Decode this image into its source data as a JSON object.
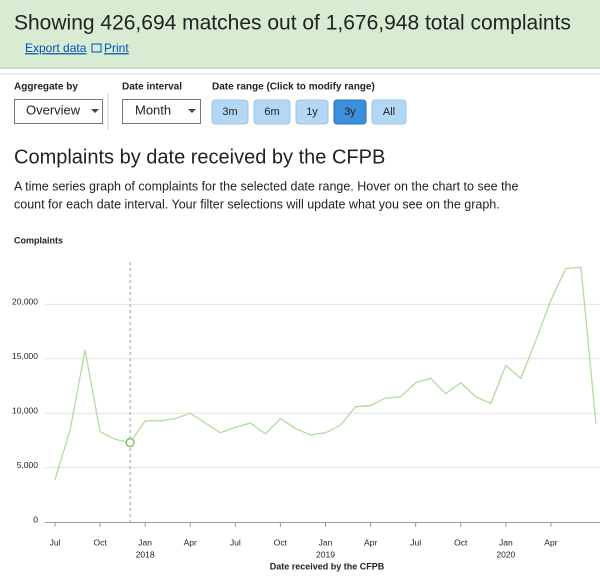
{
  "header": {
    "title": "Showing 426,694 matches out of 1,676,948 total complaints",
    "links": [
      "Export data",
      "Print"
    ]
  },
  "controls": {
    "aggregate": {
      "label": "Aggregate by",
      "value": "Overview"
    },
    "interval": {
      "label": "Date interval",
      "value": "Month"
    },
    "range": {
      "label": "Date range (Click to modify range)",
      "buttons": [
        "3m",
        "6m",
        "1y",
        "3y",
        "All"
      ],
      "active": 3
    }
  },
  "section": {
    "title": "Complaints by date received by the CFPB",
    "description": [
      "A time series graph of complaints for the selected date range. Hover on the chart to see the",
      "count for each date interval. Your filter selections will update what you see on the graph."
    ]
  },
  "chart_data": {
    "type": "line",
    "y_label": "Complaints",
    "x_label": "Date received by the CFPB",
    "color": "#b0dc9c",
    "grid": true,
    "x": [
      0,
      1,
      2,
      3,
      4,
      5,
      6,
      7,
      8,
      9,
      10,
      11,
      12,
      13,
      14,
      15,
      16,
      17,
      18,
      19,
      20,
      21,
      22,
      23,
      24,
      25,
      26,
      27,
      28,
      29,
      30,
      31,
      32,
      33,
      34,
      35,
      36
    ],
    "values": [
      3900,
      8400,
      15800,
      8300,
      7600,
      7300,
      9300,
      9300,
      9500,
      10000,
      9100,
      8200,
      8700,
      9100,
      8100,
      9500,
      8600,
      8000,
      8200,
      8900,
      10600,
      10700,
      11400,
      11500,
      12800,
      13200,
      11800,
      12800,
      11500,
      10900,
      14400,
      13200,
      16700,
      20400,
      23300,
      23400,
      9000
    ],
    "highlight": 5,
    "xlim": [
      0,
      36
    ],
    "ylim": [
      0,
      25000
    ],
    "xticks": [
      {
        "value": 0,
        "label": "Jul"
      },
      {
        "value": 3,
        "label": "Oct"
      },
      {
        "value": 6,
        "label": "Jan"
      },
      {
        "value": 9,
        "label": "Apr"
      },
      {
        "value": 12,
        "label": "Jul"
      },
      {
        "value": 15,
        "label": "Oct"
      },
      {
        "value": 18,
        "label": "Jan"
      },
      {
        "value": 21,
        "label": "Apr"
      },
      {
        "value": 24,
        "label": "Jul"
      },
      {
        "value": 27,
        "label": "Oct"
      },
      {
        "value": 30,
        "label": "Jan"
      },
      {
        "value": 33,
        "label": "Apr"
      }
    ],
    "xyears": [
      {
        "value": 6,
        "label": "2018"
      },
      {
        "value": 18,
        "label": "2019"
      },
      {
        "value": 30,
        "label": "2020"
      }
    ],
    "yticks": [
      0,
      {
        "value": 5000,
        "label": "5,000"
      },
      {
        "value": 10000,
        "label": "10,000"
      },
      {
        "value": 15000,
        "label": "15,000"
      },
      {
        "value": 20000,
        "label": "20,000"
      }
    ]
  }
}
